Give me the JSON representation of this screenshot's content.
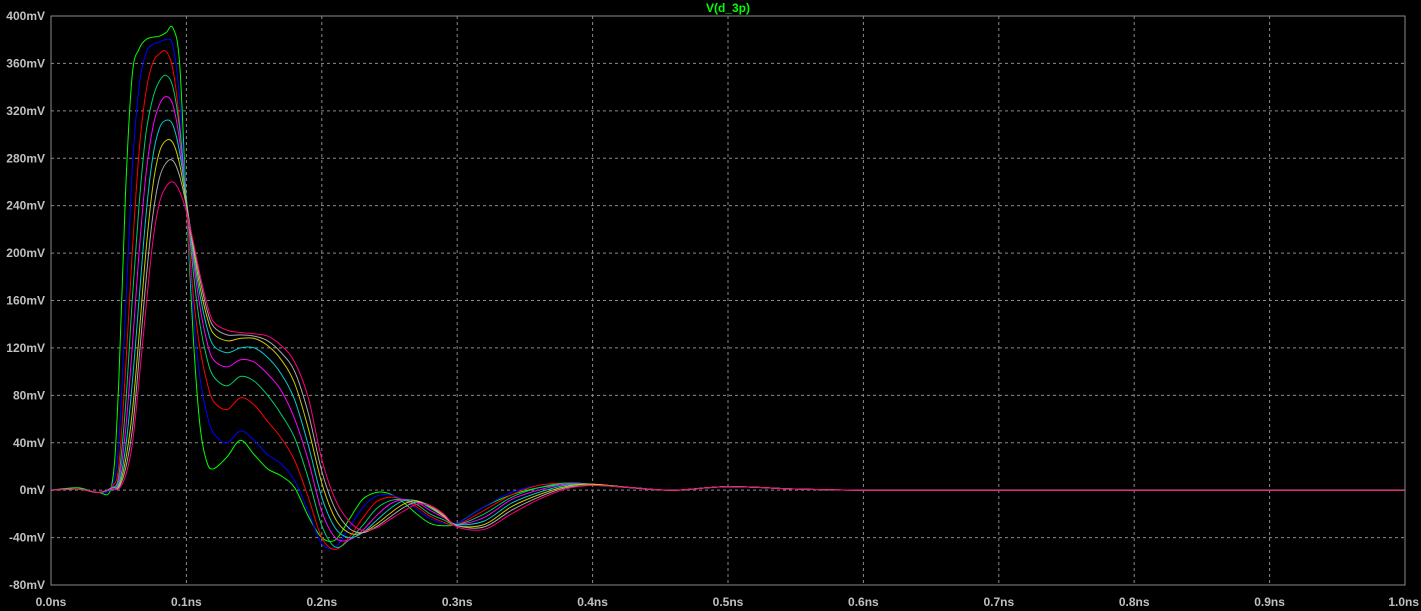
{
  "chart_data": {
    "type": "line",
    "title": "V(d_3p)",
    "xlabel": "",
    "ylabel": "",
    "xlim": [
      0.0,
      1.0
    ],
    "ylim": [
      -80,
      400
    ],
    "x_ticks": [
      "0.0ns",
      "0.1ns",
      "0.2ns",
      "0.3ns",
      "0.4ns",
      "0.5ns",
      "0.6ns",
      "0.7ns",
      "0.8ns",
      "0.9ns",
      "1.0ns"
    ],
    "y_ticks": [
      "400mV",
      "360mV",
      "320mV",
      "280mV",
      "240mV",
      "200mV",
      "160mV",
      "120mV",
      "80mV",
      "40mV",
      "0mV",
      "-40mV",
      "-80mV"
    ],
    "grid": true,
    "background": "#000000",
    "title_color": "#00ff00",
    "x": [
      0.0,
      0.02,
      0.035,
      0.045,
      0.05,
      0.055,
      0.06,
      0.065,
      0.07,
      0.075,
      0.08,
      0.085,
      0.09,
      0.095,
      0.1,
      0.105,
      0.11,
      0.115,
      0.12,
      0.13,
      0.14,
      0.15,
      0.16,
      0.17,
      0.18,
      0.19,
      0.2,
      0.21,
      0.22,
      0.23,
      0.24,
      0.25,
      0.26,
      0.27,
      0.28,
      0.29,
      0.3,
      0.32,
      0.34,
      0.36,
      0.38,
      0.4,
      0.43,
      0.46,
      0.5,
      0.55,
      0.6,
      0.7,
      0.8,
      0.9,
      1.0
    ],
    "series": [
      {
        "color": "#00ff00",
        "values": [
          0,
          2,
          -2,
          5,
          90,
          250,
          350,
          372,
          380,
          382,
          383,
          386,
          390,
          360,
          240,
          130,
          55,
          24,
          18,
          28,
          42,
          30,
          18,
          12,
          2,
          -22,
          -40,
          -42,
          -25,
          -8,
          -2,
          -3,
          -10,
          -20,
          -28,
          -30,
          -28,
          -14,
          -4,
          2,
          5,
          5,
          2,
          0,
          3,
          1,
          0,
          0,
          0,
          0,
          0
        ]
      },
      {
        "color": "#0000ff",
        "values": [
          0,
          1,
          -2,
          3,
          40,
          150,
          270,
          340,
          368,
          376,
          378,
          380,
          375,
          330,
          240,
          150,
          95,
          65,
          48,
          40,
          50,
          42,
          30,
          22,
          8,
          -18,
          -45,
          -48,
          -32,
          -15,
          -5,
          -4,
          -8,
          -16,
          -24,
          -28,
          -28,
          -14,
          -2,
          4,
          6,
          5,
          2,
          0,
          3,
          1,
          0,
          0,
          0,
          0,
          0
        ]
      },
      {
        "color": "#ff0000",
        "values": [
          0,
          1,
          -2,
          3,
          20,
          100,
          200,
          285,
          335,
          360,
          368,
          370,
          355,
          310,
          240,
          165,
          120,
          92,
          75,
          68,
          78,
          72,
          58,
          44,
          25,
          -6,
          -40,
          -50,
          -40,
          -24,
          -10,
          -6,
          -8,
          -14,
          -22,
          -27,
          -29,
          -17,
          -4,
          4,
          6,
          5,
          2,
          0,
          3,
          1,
          0,
          0,
          0,
          0,
          0
        ]
      },
      {
        "color": "#00cc66",
        "values": [
          0,
          1,
          -2,
          2,
          12,
          70,
          160,
          240,
          300,
          330,
          345,
          350,
          340,
          305,
          245,
          185,
          140,
          112,
          96,
          88,
          96,
          92,
          80,
          64,
          44,
          10,
          -30,
          -48,
          -42,
          -30,
          -16,
          -9,
          -8,
          -12,
          -20,
          -25,
          -29,
          -20,
          -6,
          2,
          6,
          5,
          2,
          0,
          3,
          1,
          0,
          0,
          0,
          0,
          0
        ]
      },
      {
        "color": "#ff00ff",
        "values": [
          0,
          1,
          -2,
          2,
          8,
          50,
          120,
          200,
          265,
          305,
          325,
          332,
          325,
          295,
          245,
          195,
          155,
          126,
          110,
          104,
          110,
          108,
          98,
          84,
          60,
          25,
          -18,
          -40,
          -42,
          -34,
          -22,
          -12,
          -8,
          -10,
          -17,
          -23,
          -29,
          -23,
          -8,
          0,
          5,
          5,
          2,
          0,
          3,
          1,
          0,
          0,
          0,
          0,
          0
        ]
      },
      {
        "color": "#00cccc",
        "values": [
          0,
          1,
          -2,
          2,
          5,
          35,
          90,
          160,
          230,
          280,
          305,
          312,
          308,
          285,
          245,
          200,
          165,
          138,
          122,
          116,
          120,
          120,
          112,
          98,
          76,
          38,
          -6,
          -32,
          -40,
          -36,
          -26,
          -16,
          -9,
          -9,
          -15,
          -22,
          -29,
          -26,
          -11,
          -2,
          4,
          5,
          2,
          0,
          3,
          1,
          0,
          0,
          0,
          0,
          0
        ]
      },
      {
        "color": "#cccc00",
        "values": [
          0,
          1,
          -2,
          1,
          3,
          25,
          65,
          130,
          200,
          255,
          285,
          295,
          293,
          275,
          242,
          205,
          172,
          147,
          132,
          126,
          128,
          128,
          122,
          110,
          90,
          52,
          6,
          -24,
          -36,
          -36,
          -29,
          -20,
          -12,
          -9,
          -14,
          -22,
          -30,
          -29,
          -14,
          -4,
          3,
          5,
          2,
          0,
          3,
          1,
          0,
          0,
          0,
          0,
          0
        ]
      },
      {
        "color": "#aaaaaa",
        "values": [
          0,
          1,
          -2,
          1,
          2,
          18,
          50,
          110,
          175,
          230,
          263,
          276,
          278,
          265,
          240,
          208,
          178,
          153,
          138,
          131,
          131,
          130,
          126,
          116,
          100,
          65,
          16,
          -16,
          -32,
          -36,
          -31,
          -23,
          -15,
          -10,
          -13,
          -21,
          -30,
          -31,
          -17,
          -6,
          2,
          4,
          2,
          0,
          3,
          1,
          0,
          0,
          0,
          0,
          0
        ]
      },
      {
        "color": "#ff0080",
        "values": [
          0,
          1,
          -2,
          1,
          1,
          12,
          38,
          92,
          152,
          208,
          242,
          256,
          260,
          252,
          235,
          210,
          182,
          158,
          142,
          135,
          133,
          132,
          130,
          122,
          108,
          78,
          26,
          -8,
          -26,
          -34,
          -32,
          -25,
          -18,
          -12,
          -13,
          -20,
          -31,
          -33,
          -20,
          -8,
          1,
          4,
          2,
          0,
          3,
          1,
          0,
          0,
          0,
          0,
          0
        ]
      }
    ]
  }
}
